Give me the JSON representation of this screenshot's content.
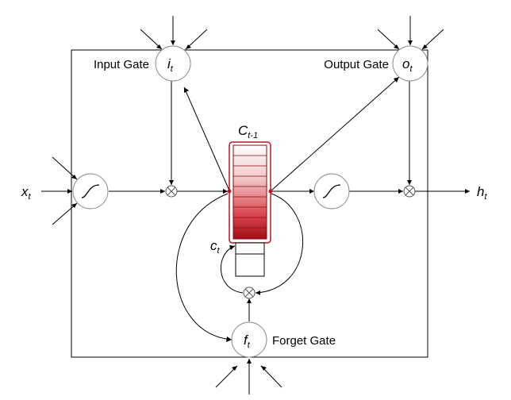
{
  "labels": {
    "input_gate": "Input Gate",
    "output_gate": "Output Gate",
    "forget_gate": "Forget Gate"
  },
  "symbols": {
    "input": {
      "base": "x",
      "sub": "t"
    },
    "output": {
      "base": "h",
      "sub": "t"
    },
    "input_gate": {
      "base": "i",
      "sub": "t"
    },
    "output_gate": {
      "base": "o",
      "sub": "t"
    },
    "forget_gate": {
      "base": "f",
      "sub": "t"
    },
    "cell_prev": {
      "base": "C",
      "sub": "t-1"
    },
    "cell_current": {
      "base": "c",
      "sub": "t"
    }
  },
  "colors": {
    "cell_red": "#c0141e",
    "cell_dark": "#8a0a10",
    "node_stroke": "#8c8c8c"
  }
}
